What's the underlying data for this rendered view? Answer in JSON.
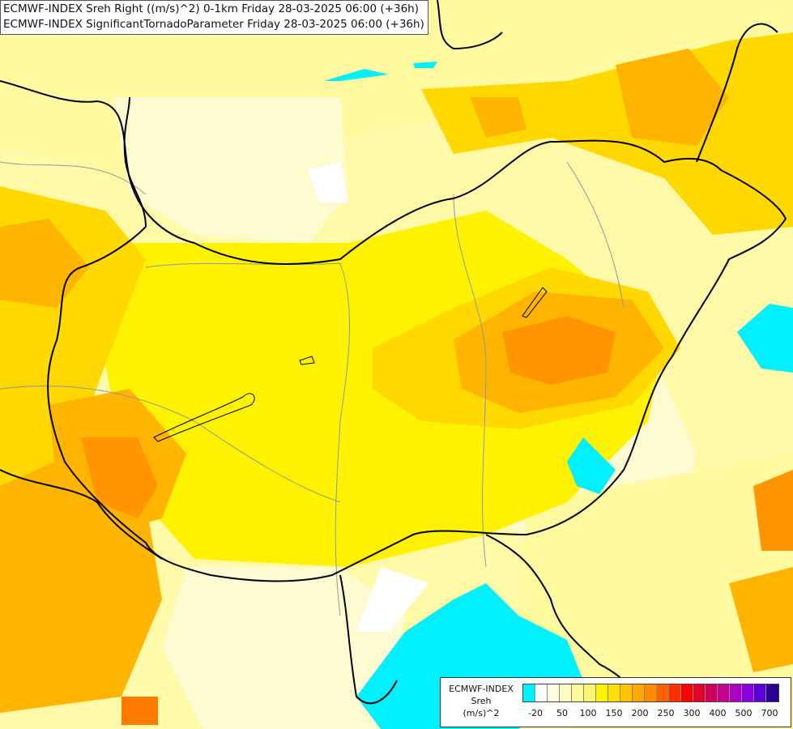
{
  "header": {
    "line1": "ECMWF-INDEX Sreh Right ((m/s)^2) 0-1km Friday 28-03-2025 06:00 (+36h)",
    "line2": "ECMWF-INDEX SignificantTornadoParameter Friday 28-03-2025 06:00 (+36h)"
  },
  "legend": {
    "source": "ECMWF-INDEX",
    "variable": "Sreh",
    "unit": "(m/s)^2",
    "colors": [
      "#00f0ff",
      "#ffffff",
      "#fffde0",
      "#fffcc0",
      "#fff99a",
      "#fff570",
      "#fff200",
      "#ffe000",
      "#ffc400",
      "#ffa800",
      "#ff8c00",
      "#ff6000",
      "#ff3000",
      "#ff0000",
      "#e00028",
      "#d0005a",
      "#c80090",
      "#b000c8",
      "#8a00e0",
      "#5a00d8",
      "#2a0090"
    ],
    "tick_labels": [
      "-20",
      "50",
      "100",
      "150",
      "200",
      "250",
      "300",
      "400",
      "500",
      "700"
    ]
  },
  "fields": {
    "levels": [
      "#00f0ff",
      "#ffffff",
      "#fffbd0",
      "#fffaa0",
      "#fff34a",
      "#fff200",
      "#ffd800",
      "#ffb400",
      "#ff9500",
      "#ff7b00"
    ]
  }
}
